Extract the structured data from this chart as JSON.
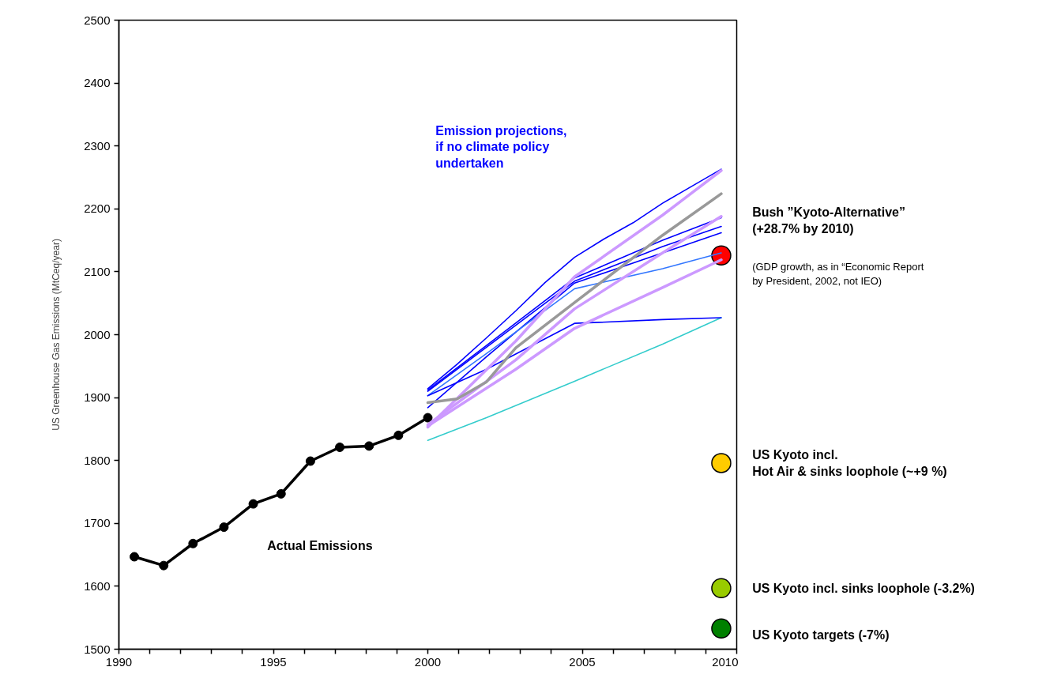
{
  "chart_data": {
    "type": "line",
    "ylabel": "US Greenhouse Gas Emissions (MtCeq/year)",
    "xlim": [
      1990,
      2010
    ],
    "ylim": [
      1500,
      2500
    ],
    "xticks": [
      1990,
      {
        "value": 1991,
        "label": null
      },
      {
        "value": 1992,
        "label": null
      },
      {
        "value": 1993,
        "label": null
      },
      {
        "value": 1994,
        "label": null
      },
      1995,
      {
        "value": 1996,
        "label": null
      },
      {
        "value": 1997,
        "label": null
      },
      {
        "value": 1998,
        "label": null
      },
      {
        "value": 1999,
        "label": null
      },
      2000,
      {
        "value": 2001,
        "label": null
      },
      {
        "value": 2002,
        "label": null
      },
      {
        "value": 2003,
        "label": null
      },
      {
        "value": 2004,
        "label": null
      },
      2005,
      {
        "value": 2006,
        "label": null
      },
      {
        "value": 2007,
        "label": null
      },
      {
        "value": 2008,
        "label": null
      },
      {
        "value": 2009,
        "label": null
      },
      2010
    ],
    "yticks": [
      1500,
      1600,
      1700,
      1800,
      1900,
      2000,
      2100,
      2200,
      2300,
      2400,
      2500
    ],
    "grid": false,
    "series": [
      {
        "color": "#000000",
        "marker": "circle",
        "x": [
          1990.5,
          1991.45,
          1992.4,
          1993.4,
          1994.35,
          1995.25,
          1996.2,
          1997.15,
          1998.1,
          1999.05,
          2000
        ],
        "values": [
          1647,
          1633,
          1668,
          1694,
          1731,
          1747,
          1799,
          1821,
          1823,
          1840,
          1868
        ]
      },
      {
        "color": "#33cccc",
        "x": [
          2000,
          2001.9,
          2004.75,
          2007.6,
          2009.5
        ],
        "values": [
          1832,
          1868,
          1926,
          1985,
          2027
        ]
      },
      {
        "color": "#0000ff",
        "x": [
          2000,
          2000.95,
          2001.9,
          2002.85,
          2003.8,
          2004.75,
          2005.7,
          2006.65,
          2007.6,
          2008.55,
          2009.5
        ],
        "values": [
          1914,
          1953,
          1995,
          2038,
          2083,
          2123,
          2152,
          2178,
          2209,
          2236,
          2263
        ]
      },
      {
        "color": "#0000ff",
        "x": [
          2000,
          2001.9,
          2004.75,
          2007.6,
          2009.5
        ],
        "values": [
          1912,
          1983,
          2090,
          2150,
          2186
        ]
      },
      {
        "color": "#0000ff",
        "x": [
          2000,
          2001.9,
          2004.75,
          2007.6,
          2009.5
        ],
        "values": [
          1910,
          1980,
          2085,
          2140,
          2172
        ]
      },
      {
        "color": "#0000ff",
        "x": [
          2000,
          2001.9,
          2004.75,
          2007.6,
          2009.5
        ],
        "values": [
          1884,
          1965,
          2082,
          2130,
          2162
        ]
      },
      {
        "color": "#3377ff",
        "x": [
          2000,
          2001.9,
          2004.75,
          2007.6,
          2009.5
        ],
        "values": [
          1903,
          1970,
          2073,
          2105,
          2130
        ]
      },
      {
        "color": "#0000ff",
        "x": [
          2000,
          2001.9,
          2004.75,
          2007.6,
          2009.5
        ],
        "values": [
          1903,
          1945,
          2018,
          2024,
          2027
        ]
      },
      {
        "color": "#cc99ff",
        "x": [
          2000,
          2002.85,
          2004.75,
          2007.6,
          2009.5
        ],
        "values": [
          1853,
          1990,
          2092,
          2190,
          2261
        ]
      },
      {
        "color": "#cc99ff",
        "x": [
          2000,
          2002.85,
          2004.75,
          2007.6,
          2009.5
        ],
        "values": [
          1857,
          1960,
          2041,
          2130,
          2188
        ]
      },
      {
        "color": "#cc99ff",
        "x": [
          2000,
          2002.85,
          2004.75,
          2007.6,
          2009.5
        ],
        "values": [
          1855,
          1945,
          2010,
          2075,
          2119
        ]
      },
      {
        "color": "#999999",
        "x": [
          2000,
          2000.95,
          2001.9,
          2002.85,
          2004.75,
          2007.6,
          2009.5
        ],
        "values": [
          1892,
          1898,
          1925,
          1979,
          2051,
          2158,
          2224
        ]
      },
      {
        "type": "scatter",
        "x": [
          2009.5,
          2009.5,
          2009.5,
          2009.5
        ],
        "values": [
          2126,
          1796,
          1597,
          1533
        ],
        "colors": [
          "#ff0000",
          "#ffcc00",
          "#99cc00",
          "#008000"
        ]
      }
    ],
    "annotations": [
      "Emission projections,\nif no climate policy\nundertaken",
      "Actual Emissions",
      "Bush ”Kyoto-Alternative”\n(+28.7% by 2010)",
      "(GDP growth, as in “Economic Report\nby President, 2002, not IEO)",
      "US Kyoto incl.\nHot Air & sinks loophole (~+9 %)",
      "US Kyoto incl. sinks loophole (-3.2%)",
      "US Kyoto targets (-7%)"
    ]
  }
}
